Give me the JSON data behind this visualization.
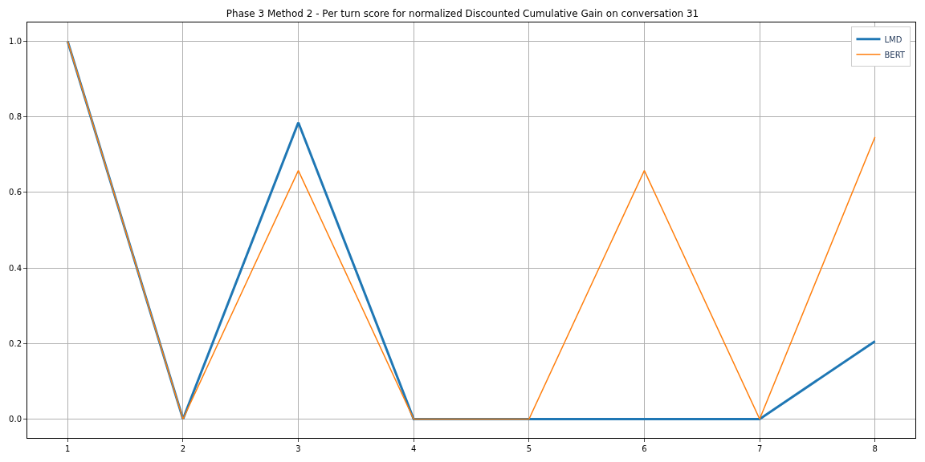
{
  "chart_data": {
    "type": "line",
    "title": "Phase 3 Method 2 - Per turn score for normalized Discounted Cumulative Gain on conversation 31",
    "x": [
      1,
      2,
      3,
      4,
      5,
      6,
      7,
      8
    ],
    "series": [
      {
        "name": "LMD",
        "color": "#1f77b4",
        "values": [
          1.0,
          0,
          0.785,
          0,
          0,
          0,
          0,
          0.206
        ]
      },
      {
        "name": "BERT",
        "color": "#ff7f0e",
        "values": [
          1.0,
          0,
          0.658,
          0,
          0,
          0.658,
          0,
          0.747
        ]
      }
    ],
    "xlim": [
      0.65,
      8.35
    ],
    "xticks": [
      1,
      2,
      3,
      4,
      5,
      6,
      7,
      8
    ],
    "ylim": [
      -0.05,
      1.05
    ],
    "yticks": [
      {
        "value": 0,
        "label": "0.0"
      },
      {
        "value": 0.2,
        "label": "0.2"
      },
      {
        "value": 0.4,
        "label": "0.4"
      },
      {
        "value": 0.6,
        "label": "0.6"
      },
      {
        "value": 0.8,
        "label": "0.8"
      },
      {
        "value": 1.0,
        "label": "1.0"
      }
    ],
    "grid": true,
    "legend": "top right",
    "marker": "none",
    "line_style": "solid"
  }
}
